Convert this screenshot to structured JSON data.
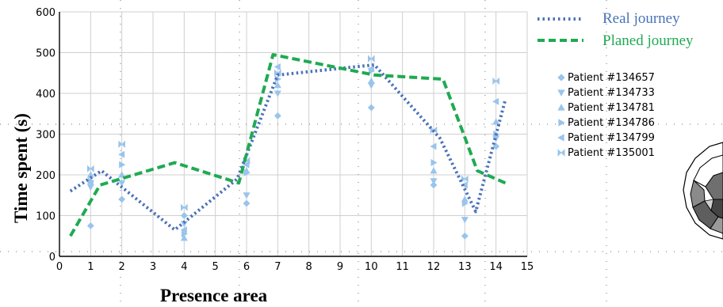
{
  "chart_data": {
    "type": "line",
    "xlabel": "Presence area",
    "ylabel": "Time spent (s)",
    "xlim": [
      0,
      15
    ],
    "ylim": [
      0,
      600
    ],
    "x_ticks": [
      0,
      1,
      2,
      3,
      4,
      5,
      6,
      7,
      8,
      9,
      10,
      11,
      12,
      13,
      14,
      15
    ],
    "y_ticks": [
      0,
      100,
      200,
      300,
      400,
      500,
      600
    ],
    "y_tick_labels": [
      "0",
      "100",
      "200",
      "300",
      "400",
      "500",
      "600"
    ],
    "grid": true,
    "legend_placement": "top-right",
    "series": [
      {
        "name": "Real journey",
        "color": "#4a72b8",
        "style": "dotted",
        "points": [
          [
            0.35,
            160
          ],
          [
            1.35,
            210
          ],
          [
            3.7,
            65
          ],
          [
            5.7,
            190
          ],
          [
            7,
            445
          ],
          [
            10.1,
            470
          ],
          [
            12.2,
            290
          ],
          [
            13.35,
            110
          ],
          [
            14.3,
            385
          ]
        ]
      },
      {
        "name": "Planed journey",
        "color": "#1faa52",
        "style": "dashed",
        "points": [
          [
            0.35,
            50
          ],
          [
            1.3,
            175
          ],
          [
            3.7,
            230
          ],
          [
            5.75,
            180
          ],
          [
            6.85,
            495
          ],
          [
            10.1,
            445
          ],
          [
            12.3,
            435
          ],
          [
            13.4,
            210
          ],
          [
            14.3,
            180
          ]
        ]
      }
    ],
    "patients": {
      "color": "#99c4ec",
      "entries": [
        {
          "name": "Patient #134657",
          "marker": "diamond",
          "points": [
            [
              1,
              75
            ],
            [
              2,
              140
            ],
            [
              4,
              100
            ],
            [
              6,
              130
            ],
            [
              7,
              345
            ],
            [
              10,
              365
            ],
            [
              12,
              175
            ],
            [
              13,
              50
            ],
            [
              14,
              270
            ]
          ]
        },
        {
          "name": "Patient #134733",
          "marker": "triangle-down",
          "points": [
            [
              1,
              170
            ],
            [
              2,
              180
            ],
            [
              4,
              80
            ],
            [
              6,
              150
            ],
            [
              7,
              400
            ],
            [
              10,
              420
            ],
            [
              12,
              185
            ],
            [
              13,
              90
            ],
            [
              14,
              290
            ]
          ]
        },
        {
          "name": "Patient #134781",
          "marker": "triangle-up",
          "points": [
            [
              1,
              200
            ],
            [
              2,
              200
            ],
            [
              4,
              45
            ],
            [
              6,
              210
            ],
            [
              7,
              420
            ],
            [
              10,
              430
            ],
            [
              12,
              210
            ],
            [
              13,
              140
            ],
            [
              14,
              330
            ]
          ]
        },
        {
          "name": "Patient #134786",
          "marker": "triangle-right",
          "points": [
            [
              1,
              185
            ],
            [
              2,
              225
            ],
            [
              4,
              55
            ],
            [
              6,
              205
            ],
            [
              7,
              435
            ],
            [
              10,
              455
            ],
            [
              12,
              230
            ],
            [
              13,
              130
            ],
            [
              14,
              300
            ]
          ]
        },
        {
          "name": "Patient #134799",
          "marker": "triangle-left",
          "points": [
            [
              1,
              180
            ],
            [
              2,
              250
            ],
            [
              4,
              65
            ],
            [
              6,
              225
            ],
            [
              7,
              465
            ],
            [
              10,
              460
            ],
            [
              12,
              270
            ],
            [
              13,
              175
            ],
            [
              14,
              380
            ]
          ]
        },
        {
          "name": "Patient #135001",
          "marker": "bowtie",
          "points": [
            [
              1,
              215
            ],
            [
              2,
              275
            ],
            [
              4,
              120
            ],
            [
              6,
              235
            ],
            [
              7,
              450
            ],
            [
              10,
              485
            ],
            [
              12,
              310
            ],
            [
              13,
              190
            ],
            [
              14,
              430
            ]
          ]
        }
      ]
    }
  }
}
